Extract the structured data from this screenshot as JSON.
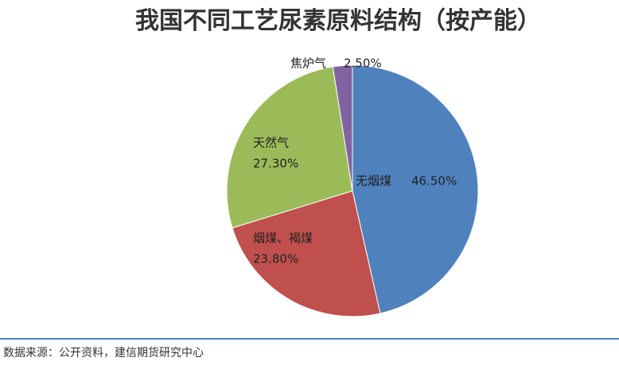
{
  "chart_data": {
    "type": "pie",
    "title": "我国不同工艺尿素原料结构（按产能）",
    "categories": [
      "无烟煤",
      "烟煤、褐煤",
      "天然气",
      "焦炉气"
    ],
    "values": [
      46.5,
      23.8,
      27.3,
      2.5
    ],
    "value_labels": [
      "46.50%",
      "23.80%",
      "27.30%",
      "2.50%"
    ],
    "colors": [
      "#4f81bd",
      "#c0504d",
      "#9bbb59",
      "#8064a2"
    ],
    "source": "数据来源：公开资料，建信期货研究中心"
  }
}
